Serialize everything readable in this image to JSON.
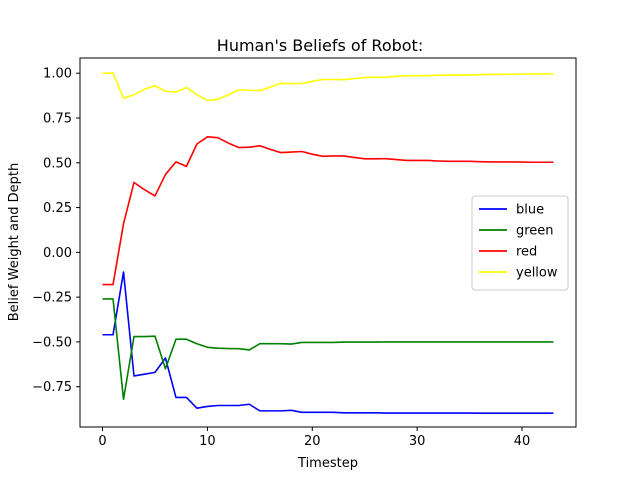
{
  "chart_data": {
    "type": "line",
    "title": "Human's Beliefs of Robot:",
    "xlabel": "Timestep",
    "ylabel": "Belief Weight and Depth",
    "xlim": [
      -2.15,
      45.15
    ],
    "ylim": [
      -0.975,
      1.085
    ],
    "xticks": [
      0,
      10,
      20,
      30,
      40
    ],
    "yticks": [
      -0.75,
      -0.5,
      -0.25,
      0.0,
      0.25,
      0.5,
      0.75,
      1.0
    ],
    "ytick_labels": [
      "−0.75",
      "−0.50",
      "−0.25",
      "0.00",
      "0.25",
      "0.50",
      "0.75",
      "1.00"
    ],
    "grid": false,
    "legend_position": "center-right",
    "x": [
      0,
      1,
      2,
      3,
      4,
      5,
      6,
      7,
      8,
      9,
      10,
      11,
      12,
      13,
      14,
      15,
      16,
      17,
      18,
      19,
      20,
      21,
      22,
      23,
      24,
      25,
      26,
      27,
      28,
      29,
      30,
      31,
      32,
      33,
      34,
      35,
      36,
      37,
      38,
      39,
      40,
      41,
      42,
      43
    ],
    "series": [
      {
        "name": "blue",
        "color": "#0000ff",
        "values": [
          -0.46,
          -0.46,
          -0.11,
          -0.69,
          -0.68,
          -0.67,
          -0.59,
          -0.81,
          -0.81,
          -0.87,
          -0.86,
          -0.855,
          -0.855,
          -0.855,
          -0.848,
          -0.885,
          -0.885,
          -0.885,
          -0.882,
          -0.893,
          -0.893,
          -0.893,
          -0.893,
          -0.896,
          -0.896,
          -0.896,
          -0.896,
          -0.897,
          -0.897,
          -0.897,
          -0.897,
          -0.897,
          -0.897,
          -0.897,
          -0.897,
          -0.897,
          -0.898,
          -0.898,
          -0.898,
          -0.898,
          -0.898,
          -0.898,
          -0.898,
          -0.898
        ]
      },
      {
        "name": "green",
        "color": "#008000",
        "values": [
          -0.26,
          -0.26,
          -0.82,
          -0.47,
          -0.47,
          -0.468,
          -0.65,
          -0.485,
          -0.485,
          -0.51,
          -0.53,
          -0.535,
          -0.537,
          -0.538,
          -0.545,
          -0.51,
          -0.51,
          -0.51,
          -0.512,
          -0.503,
          -0.503,
          -0.503,
          -0.503,
          -0.501,
          -0.501,
          -0.501,
          -0.501,
          -0.5,
          -0.5,
          -0.5,
          -0.5,
          -0.5,
          -0.5,
          -0.5,
          -0.5,
          -0.5,
          -0.5,
          -0.5,
          -0.5,
          -0.5,
          -0.5,
          -0.5,
          -0.5,
          -0.5
        ]
      },
      {
        "name": "red",
        "color": "#ff0000",
        "values": [
          -0.18,
          -0.18,
          0.16,
          0.39,
          0.35,
          0.315,
          0.435,
          0.505,
          0.48,
          0.605,
          0.645,
          0.64,
          0.61,
          0.585,
          0.587,
          0.595,
          0.575,
          0.557,
          0.56,
          0.563,
          0.548,
          0.536,
          0.538,
          0.538,
          0.53,
          0.522,
          0.522,
          0.523,
          0.518,
          0.513,
          0.513,
          0.513,
          0.51,
          0.508,
          0.508,
          0.508,
          0.506,
          0.505,
          0.505,
          0.505,
          0.504,
          0.503,
          0.503,
          0.503
        ]
      },
      {
        "name": "yellow",
        "color": "#ffff00",
        "values": [
          1.0,
          1.0,
          0.86,
          0.88,
          0.91,
          0.93,
          0.9,
          0.895,
          0.92,
          0.88,
          0.848,
          0.855,
          0.88,
          0.907,
          0.905,
          0.903,
          0.923,
          0.943,
          0.942,
          0.943,
          0.955,
          0.965,
          0.965,
          0.964,
          0.97,
          0.976,
          0.978,
          0.977,
          0.983,
          0.986,
          0.986,
          0.986,
          0.989,
          0.99,
          0.99,
          0.99,
          0.992,
          0.993,
          0.994,
          0.994,
          0.995,
          0.996,
          0.996,
          0.996
        ]
      }
    ]
  }
}
